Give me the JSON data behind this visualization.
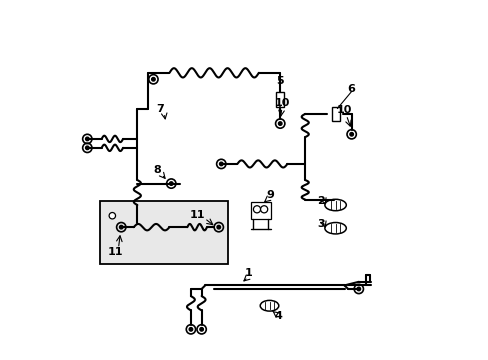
{
  "background_color": "#ffffff",
  "fig_width": 4.89,
  "fig_height": 3.6,
  "dpi": 100,
  "label_fontsize": 8,
  "lw_pipe": 1.5,
  "lw_thin": 1.0
}
